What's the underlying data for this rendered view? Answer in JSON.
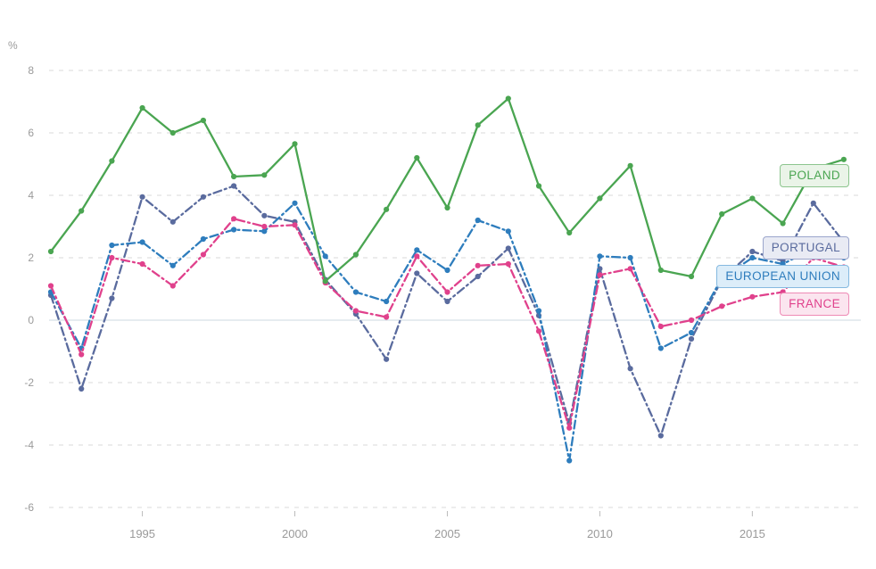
{
  "chart_data": {
    "type": "line",
    "title": "",
    "ylabel": "%",
    "xlabel": "",
    "ylim": [
      -6,
      8
    ],
    "yticks": [
      8,
      6,
      4,
      2,
      0,
      -2,
      -4,
      -6
    ],
    "xticks": [
      1995,
      2000,
      2005,
      2010,
      2015
    ],
    "grid": "horizontal-dashed",
    "zero_line": "solid",
    "legend_position": "inline-right-boxes",
    "x": [
      1992,
      1993,
      1994,
      1995,
      1996,
      1997,
      1998,
      1999,
      2000,
      2001,
      2002,
      2003,
      2004,
      2005,
      2006,
      2007,
      2008,
      2009,
      2010,
      2011,
      2012,
      2013,
      2014,
      2015,
      2016,
      2017,
      2018
    ],
    "series": [
      {
        "name": "POLAND",
        "color": "#4aa551",
        "style": "solid",
        "label_bg": "#eaf4e8",
        "label_border": "#8cc58e",
        "values": [
          2.2,
          3.5,
          5.1,
          6.8,
          6.0,
          6.4,
          4.6,
          4.65,
          5.65,
          1.25,
          2.1,
          3.55,
          5.2,
          3.6,
          6.25,
          7.1,
          4.3,
          2.8,
          3.9,
          4.95,
          1.6,
          1.4,
          3.4,
          3.9,
          3.1,
          4.85,
          5.15
        ]
      },
      {
        "name": "PORTUGAL",
        "color": "#5a6b9e",
        "style": "dash-dot",
        "label_bg": "#e9ebf4",
        "label_border": "#9ba6cc",
        "values": [
          0.8,
          -2.2,
          0.7,
          3.95,
          3.15,
          3.95,
          4.3,
          3.35,
          3.15,
          1.3,
          0.2,
          -1.25,
          1.5,
          0.6,
          1.4,
          2.3,
          0.15,
          -3.3,
          1.65,
          -1.55,
          -3.7,
          -0.6,
          1.3,
          2.2,
          1.9,
          3.75,
          2.5
        ]
      },
      {
        "name": "EUROPEAN UNION",
        "color": "#2e7dbd",
        "style": "dash-dot",
        "label_bg": "#dcedf9",
        "label_border": "#85b9e0",
        "values": [
          0.9,
          -0.9,
          2.4,
          2.5,
          1.75,
          2.6,
          2.9,
          2.85,
          3.75,
          2.05,
          0.9,
          0.6,
          2.25,
          1.6,
          3.2,
          2.85,
          0.3,
          -4.5,
          2.05,
          2.0,
          -0.9,
          -0.4,
          1.35,
          2.0,
          1.8,
          2.3,
          2.0
        ]
      },
      {
        "name": "FRANCE",
        "color": "#e0418c",
        "style": "dash-dot",
        "label_bg": "#fbe5ef",
        "label_border": "#ee8ab5",
        "values": [
          1.1,
          -1.1,
          2.0,
          1.8,
          1.1,
          2.1,
          3.25,
          3.0,
          3.05,
          1.2,
          0.3,
          0.1,
          2.05,
          0.9,
          1.75,
          1.8,
          -0.35,
          -3.45,
          1.45,
          1.65,
          -0.2,
          0.0,
          0.45,
          0.75,
          0.9,
          2.0,
          1.7
        ]
      }
    ],
    "axis_colors": {
      "tick_text": "#9a9a9a",
      "gridline": "#dadada",
      "zero_line": "#ccd9e0",
      "tick_mark": "#bbbbbb"
    }
  }
}
